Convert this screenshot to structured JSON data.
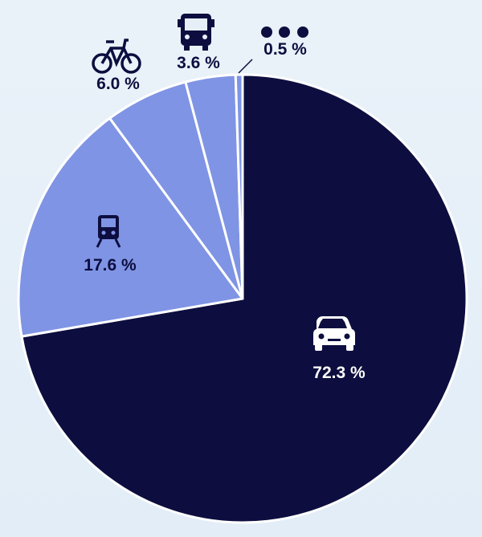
{
  "chart_data": {
    "type": "pie",
    "start": "12 o'clock",
    "direction": "clockwise",
    "slices": [
      {
        "category": "car",
        "value": 72.3,
        "label": "72.3 %",
        "color": "#0d0e3f",
        "label_color": "#ffffff",
        "icon": "car-icon"
      },
      {
        "category": "train",
        "value": 17.6,
        "label": "17.6 %",
        "color": "#7f94e4",
        "label_color": "#0d0e3f",
        "icon": "train-icon"
      },
      {
        "category": "bicycle",
        "value": 6.0,
        "label": "6.0 %",
        "color": "#7f94e4",
        "label_color": "#0d0e3f",
        "icon": "bicycle-icon"
      },
      {
        "category": "bus",
        "value": 3.6,
        "label": "3.6 %",
        "color": "#7f94e4",
        "label_color": "#0d0e3f",
        "icon": "bus-icon"
      },
      {
        "category": "other",
        "value": 0.5,
        "label": "0.5 %",
        "color": "#7f94e4",
        "label_color": "#0d0e3f",
        "icon": "more-dots-icon"
      }
    ],
    "slice_separator_color": "#ffffff",
    "background_color": "#e6eff8"
  }
}
